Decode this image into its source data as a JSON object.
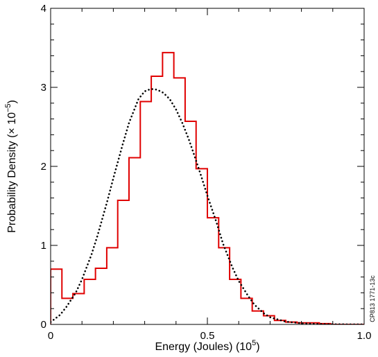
{
  "chart_data": {
    "type": "line",
    "xlabel_main": "Energy (Joules) (10",
    "xlabel_exp": "5",
    "xlabel_end": ")",
    "ylabel_main": "Probability Density (× 10",
    "ylabel_exp": "−5",
    "ylabel_end": ")",
    "side_note": "CP813 1771-13c",
    "xlim": [
      0,
      1.0
    ],
    "ylim": [
      0,
      4
    ],
    "x_ticks": [
      {
        "value": 0,
        "label": "0"
      },
      {
        "value": 0.5,
        "label": "0.5"
      },
      {
        "value": 1.0,
        "label": "1.0"
      }
    ],
    "y_ticks": [
      {
        "value": 0,
        "label": "0"
      },
      {
        "value": 1,
        "label": "1"
      },
      {
        "value": 2,
        "label": "2"
      },
      {
        "value": 3,
        "label": "3"
      },
      {
        "value": 4,
        "label": "4"
      }
    ],
    "grid": false,
    "series": [
      {
        "style": "histogram",
        "color": "#e00000",
        "bin_edges": [
          0,
          0.036,
          0.071,
          0.107,
          0.143,
          0.179,
          0.214,
          0.25,
          0.286,
          0.321,
          0.357,
          0.393,
          0.429,
          0.464,
          0.5,
          0.536,
          0.571,
          0.607,
          0.643,
          0.679,
          0.714,
          0.75,
          0.786,
          0.821,
          0.857,
          0.893,
          0.929,
          0.964,
          1.0
        ],
        "values": [
          0.7,
          0.33,
          0.39,
          0.57,
          0.71,
          0.97,
          1.57,
          2.11,
          2.82,
          3.14,
          3.44,
          3.12,
          2.57,
          1.97,
          1.35,
          0.97,
          0.57,
          0.33,
          0.17,
          0.11,
          0.05,
          0.03,
          0.02,
          0.02,
          0.01,
          0.0,
          0.0,
          0.0
        ]
      },
      {
        "style": "dotted-curve",
        "color": "#000000",
        "x": [
          0,
          0.03,
          0.05,
          0.08,
          0.1,
          0.13,
          0.15,
          0.18,
          0.2,
          0.23,
          0.25,
          0.28,
          0.3,
          0.32,
          0.34,
          0.36,
          0.38,
          0.4,
          0.42,
          0.44,
          0.46,
          0.48,
          0.5,
          0.53,
          0.55,
          0.58,
          0.6,
          0.63,
          0.65,
          0.68,
          0.7,
          0.75,
          0.8,
          0.85,
          0.9,
          0.95,
          1.0
        ],
        "y": [
          0.03,
          0.12,
          0.22,
          0.4,
          0.57,
          0.88,
          1.13,
          1.55,
          1.85,
          2.28,
          2.55,
          2.85,
          2.95,
          2.98,
          2.97,
          2.93,
          2.85,
          2.72,
          2.55,
          2.35,
          2.12,
          1.88,
          1.63,
          1.28,
          1.02,
          0.72,
          0.55,
          0.36,
          0.25,
          0.14,
          0.09,
          0.035,
          0.015,
          0.006,
          0.002,
          0.001,
          0.0
        ]
      }
    ]
  }
}
